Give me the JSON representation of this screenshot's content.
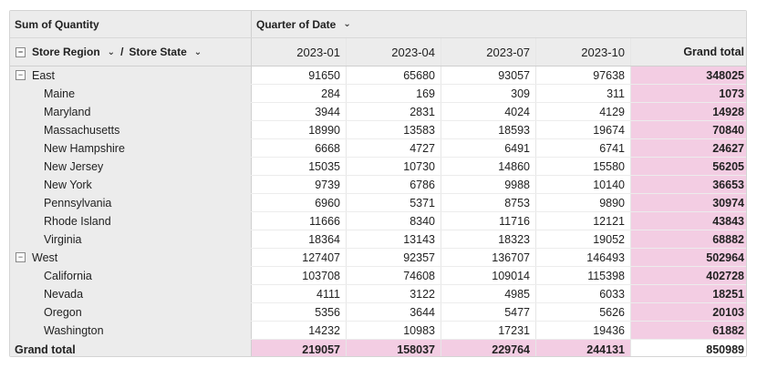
{
  "pivot": {
    "measure_label": "Sum of Quantity",
    "column_field_label": "Quarter of Date",
    "row_field_1_label": "Store Region",
    "row_field_separator": "/",
    "row_field_2_label": "Store State",
    "quarters": [
      "2023-01",
      "2023-04",
      "2023-07",
      "2023-10"
    ],
    "grand_total_column_label": "Grand total",
    "grand_total_row_label": "Grand total",
    "toggle_symbol": "−",
    "rows": [
      {
        "label": "East",
        "level": 0,
        "values": [
          "91650",
          "65680",
          "93057",
          "97638"
        ],
        "total": "348025"
      },
      {
        "label": "Maine",
        "level": 1,
        "values": [
          "284",
          "169",
          "309",
          "311"
        ],
        "total": "1073"
      },
      {
        "label": "Maryland",
        "level": 1,
        "values": [
          "3944",
          "2831",
          "4024",
          "4129"
        ],
        "total": "14928"
      },
      {
        "label": "Massachusetts",
        "level": 1,
        "values": [
          "18990",
          "13583",
          "18593",
          "19674"
        ],
        "total": "70840"
      },
      {
        "label": "New Hampshire",
        "level": 1,
        "values": [
          "6668",
          "4727",
          "6491",
          "6741"
        ],
        "total": "24627"
      },
      {
        "label": "New Jersey",
        "level": 1,
        "values": [
          "15035",
          "10730",
          "14860",
          "15580"
        ],
        "total": "56205"
      },
      {
        "label": "New York",
        "level": 1,
        "values": [
          "9739",
          "6786",
          "9988",
          "10140"
        ],
        "total": "36653"
      },
      {
        "label": "Pennsylvania",
        "level": 1,
        "values": [
          "6960",
          "5371",
          "8753",
          "9890"
        ],
        "total": "30974"
      },
      {
        "label": "Rhode Island",
        "level": 1,
        "values": [
          "11666",
          "8340",
          "11716",
          "12121"
        ],
        "total": "43843"
      },
      {
        "label": "Virginia",
        "level": 1,
        "values": [
          "18364",
          "13143",
          "18323",
          "19052"
        ],
        "total": "68882"
      },
      {
        "label": "West",
        "level": 0,
        "values": [
          "127407",
          "92357",
          "136707",
          "146493"
        ],
        "total": "502964"
      },
      {
        "label": "California",
        "level": 1,
        "values": [
          "103708",
          "74608",
          "109014",
          "115398"
        ],
        "total": "402728"
      },
      {
        "label": "Nevada",
        "level": 1,
        "values": [
          "4111",
          "3122",
          "4985",
          "6033"
        ],
        "total": "18251"
      },
      {
        "label": "Oregon",
        "level": 1,
        "values": [
          "5356",
          "3644",
          "5477",
          "5626"
        ],
        "total": "20103"
      },
      {
        "label": "Washington",
        "level": 1,
        "values": [
          "14232",
          "10983",
          "17231",
          "19436"
        ],
        "total": "61882"
      }
    ],
    "grand_totals": {
      "values": [
        "219057",
        "158037",
        "229764",
        "244131"
      ],
      "total": "850989"
    },
    "colors": {
      "header_bg": "#ececec",
      "total_highlight": "#f3cde3",
      "border": "#d4d4d4"
    }
  }
}
